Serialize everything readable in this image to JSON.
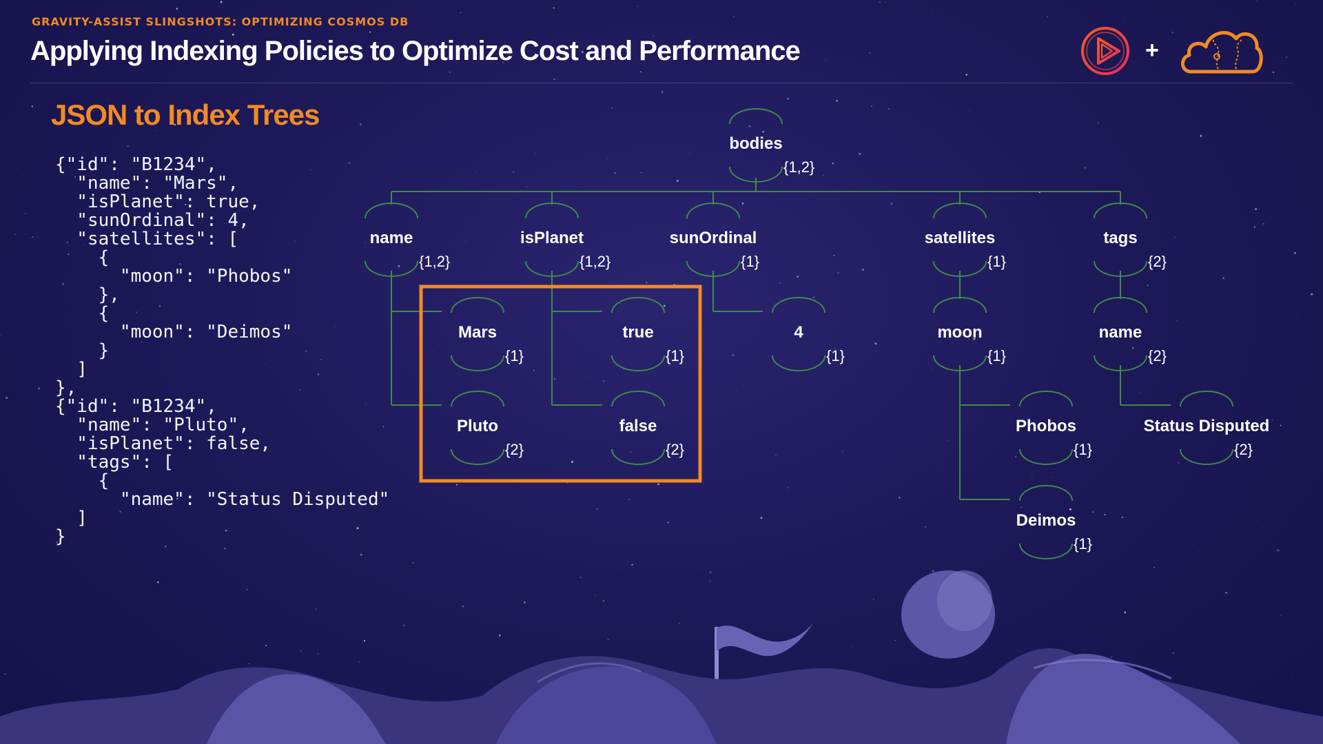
{
  "header": {
    "kicker": "GRAVITY-ASSIST SLINGSHOTS: OPTIMIZING COSMOS DB",
    "title": "Applying Indexing Policies to Optimize Cost and Performance",
    "plus": "+"
  },
  "slide": {
    "section_title": "JSON to Index Trees",
    "code": "{\"id\": \"B1234\",\n  \"name\": \"Mars\",\n  \"isPlanet\": true,\n  \"sunOrdinal\": 4,\n  \"satellites\": [\n    {\n      \"moon\": \"Phobos\"\n    },\n    {\n      \"moon\": \"Deimos\"\n    }\n  ]\n},\n{\"id\": \"B1234\",\n  \"name\": \"Pluto\",\n  \"isPlanet\": false,\n  \"tags\": [\n    {\n      \"name\": \"Status Disputed\"\n  ]\n}"
  },
  "tree": {
    "nodes": [
      {
        "id": "bodies",
        "label": "bodies",
        "ids": "{1,2}"
      },
      {
        "id": "name",
        "label": "name",
        "ids": "{1,2}"
      },
      {
        "id": "isPlanet",
        "label": "isPlanet",
        "ids": "{1,2}"
      },
      {
        "id": "sunOrdinal",
        "label": "sunOrdinal",
        "ids": "{1}"
      },
      {
        "id": "satellites",
        "label": "satellites",
        "ids": "{1}"
      },
      {
        "id": "tags",
        "label": "tags",
        "ids": "{2}"
      },
      {
        "id": "mars",
        "label": "Mars",
        "ids": "{1}"
      },
      {
        "id": "true",
        "label": "true",
        "ids": "{1}"
      },
      {
        "id": "four",
        "label": "4",
        "ids": "{1}"
      },
      {
        "id": "moon",
        "label": "moon",
        "ids": "{1}"
      },
      {
        "id": "tagname",
        "label": "name",
        "ids": "{2}"
      },
      {
        "id": "pluto",
        "label": "Pluto",
        "ids": "{2}"
      },
      {
        "id": "false",
        "label": "false",
        "ids": "{2}"
      },
      {
        "id": "phobos",
        "label": "Phobos",
        "ids": "{1}"
      },
      {
        "id": "statusdisputed",
        "label": "Status Disputed",
        "ids": "{2}"
      },
      {
        "id": "deimos",
        "label": "Deimos",
        "ids": "{1}"
      }
    ]
  },
  "colors": {
    "accent": "#f28a24",
    "connector": "#3f8a4a",
    "highlight_box": "#f28a24",
    "background": "#1e1a5a",
    "logo_play": "#e8305a"
  },
  "icons": [
    "play-logo-icon",
    "cloud-logo-icon"
  ]
}
